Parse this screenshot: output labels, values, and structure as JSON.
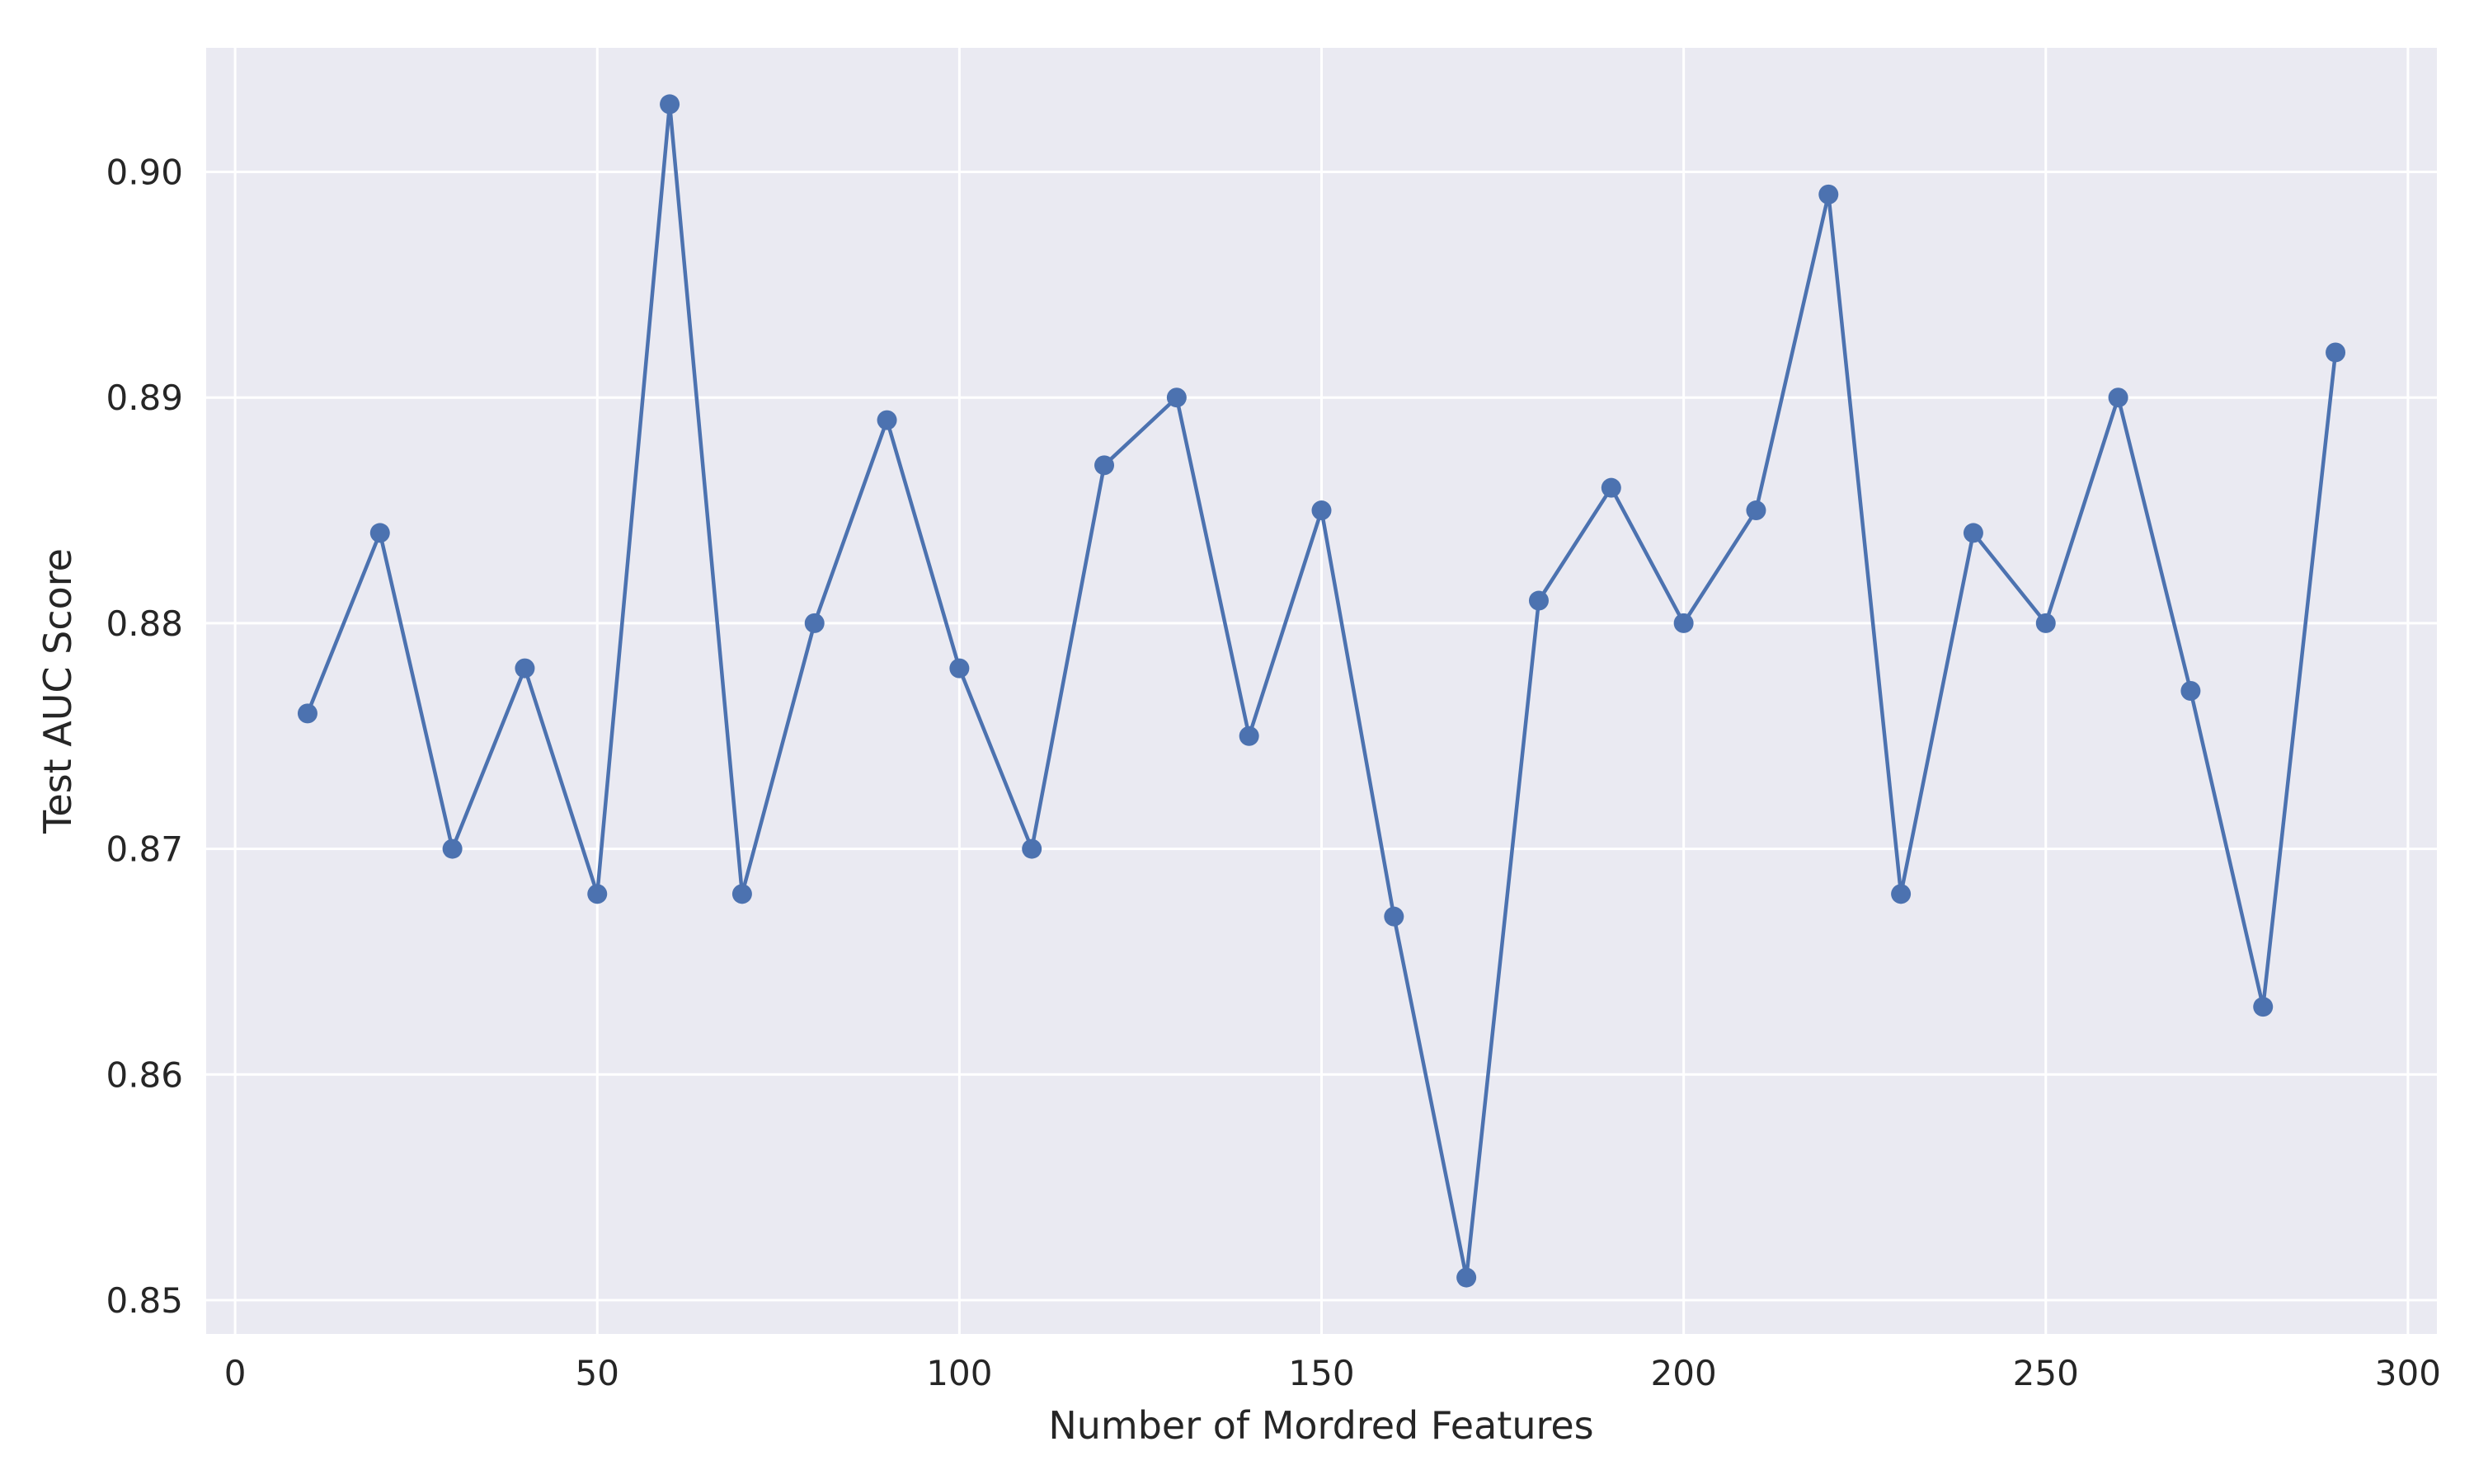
{
  "chart_data": {
    "type": "line",
    "xlabel": "Number of Mordred Features",
    "ylabel": "Test AUC Score",
    "xlim": [
      -4,
      304
    ],
    "ylim": [
      0.8485,
      0.9055
    ],
    "xticks": [
      0,
      50,
      100,
      150,
      200,
      250,
      300
    ],
    "yticks": [
      0.85,
      0.86,
      0.87,
      0.88,
      0.89,
      0.9
    ],
    "xtick_labels": [
      "0",
      "50",
      "100",
      "150",
      "200",
      "250",
      "300"
    ],
    "ytick_labels": [
      "0.85",
      "0.86",
      "0.87",
      "0.88",
      "0.89",
      "0.90"
    ],
    "grid": true,
    "background": "#eaeaf2",
    "grid_color": "#ffffff",
    "series_color": "#4c72b0",
    "marker": "circle",
    "series": [
      {
        "x": [
          10,
          20,
          30,
          40,
          50,
          60,
          70,
          80,
          90,
          100,
          110,
          120,
          130,
          140,
          150,
          160,
          170,
          180,
          190,
          200,
          210,
          220,
          230,
          240,
          250,
          260,
          270,
          280,
          290
        ],
        "y": [
          0.876,
          0.884,
          0.87,
          0.878,
          0.868,
          0.903,
          0.868,
          0.88,
          0.889,
          0.878,
          0.87,
          0.887,
          0.89,
          0.875,
          0.885,
          0.867,
          0.851,
          0.881,
          0.886,
          0.88,
          0.885,
          0.899,
          0.868,
          0.884,
          0.88,
          0.89,
          0.877,
          0.863,
          0.892
        ]
      }
    ]
  }
}
